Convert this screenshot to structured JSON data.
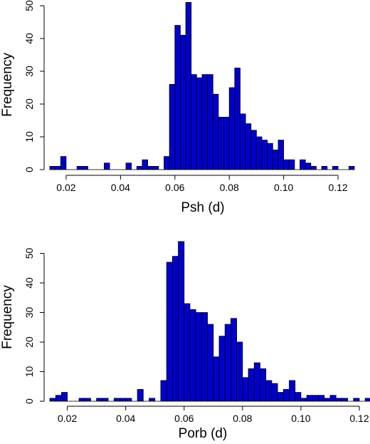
{
  "chart_data": [
    {
      "type": "bar",
      "subtype": "histogram",
      "xlabel": "Psh (d)",
      "ylabel": "Frequency",
      "bin_start": 0.014,
      "bin_width": 0.002,
      "xlim": [
        0.014,
        0.126
      ],
      "ylim": [
        0,
        50
      ],
      "x_ticks": [
        "0.02",
        "0.04",
        "0.06",
        "0.08",
        "0.10",
        "0.12"
      ],
      "y_ticks": [
        "0",
        "10",
        "20",
        "30",
        "40",
        "50"
      ],
      "values": [
        1,
        1,
        4,
        0,
        0,
        1,
        1,
        0,
        0,
        0,
        2,
        0,
        0,
        0,
        2,
        0,
        1,
        3,
        1,
        1,
        0,
        4,
        26,
        44,
        41,
        51,
        29,
        28,
        29,
        29,
        23,
        16,
        16,
        25,
        31,
        17,
        14,
        12,
        10,
        9,
        8,
        6,
        9,
        3,
        3,
        0,
        3,
        2,
        1,
        0,
        1,
        0,
        1,
        0,
        0,
        1
      ],
      "bar_color": "#0000cc",
      "grid": false,
      "legend": "none"
    },
    {
      "type": "bar",
      "subtype": "histogram",
      "xlabel": "Porb (d)",
      "ylabel": "Frequency",
      "bin_start": 0.014,
      "bin_width": 0.002,
      "xlim": [
        0.014,
        0.12
      ],
      "ylim": [
        0,
        54
      ],
      "x_ticks": [
        "0.02",
        "0.04",
        "0.06",
        "0.08",
        "0.10",
        "0.12"
      ],
      "y_ticks": [
        "0",
        "10",
        "20",
        "30",
        "40",
        "50"
      ],
      "values": [
        1,
        2,
        3,
        0,
        0,
        1,
        1,
        0,
        1,
        1,
        0,
        1,
        1,
        1,
        0,
        4,
        0,
        1,
        0,
        7,
        47,
        49,
        54,
        33,
        31,
        30,
        30,
        26,
        15,
        22,
        26,
        28,
        20,
        8,
        11,
        13,
        11,
        7,
        6,
        3,
        4,
        7,
        3,
        1,
        2,
        2,
        2,
        1,
        2,
        1,
        1,
        0,
        1,
        0,
        1,
        1,
        1
      ],
      "bar_color": "#0000cc",
      "grid": false,
      "legend": "none"
    }
  ]
}
